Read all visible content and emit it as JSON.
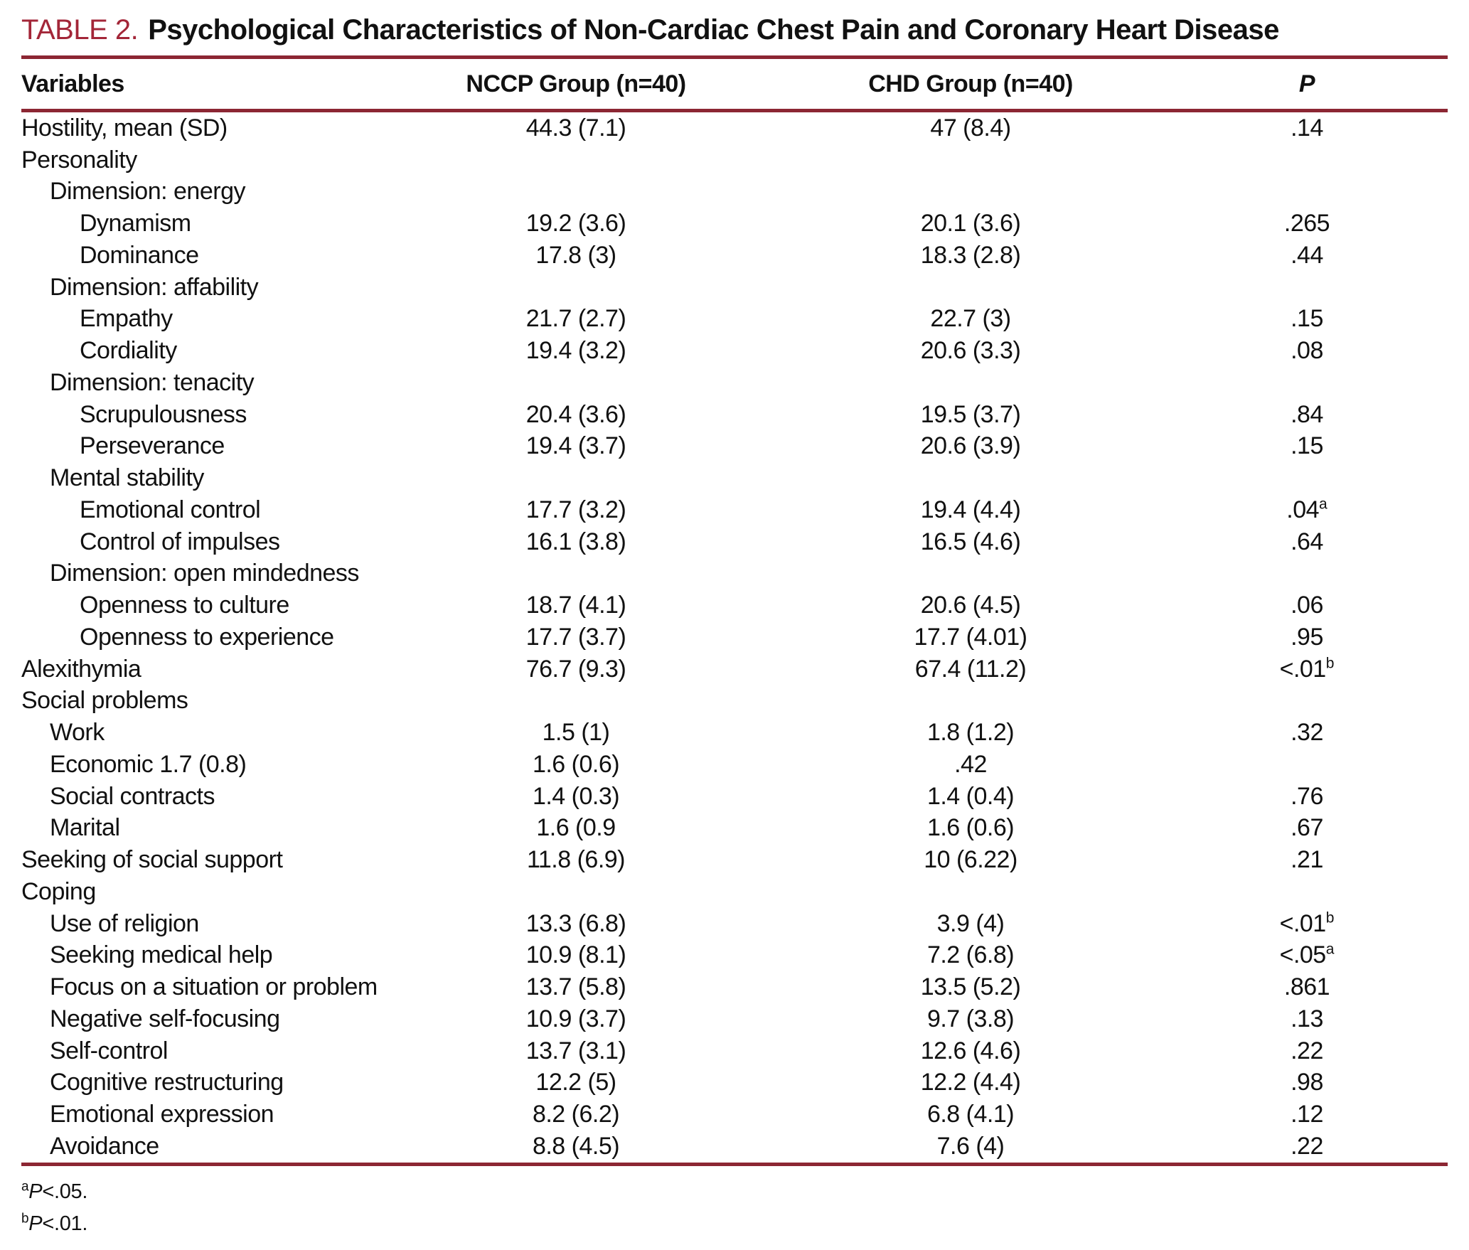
{
  "title": {
    "label": "TABLE 2.",
    "text": "Psychological Characteristics of Non-Cardiac Chest Pain and Coronary Heart Disease"
  },
  "colors": {
    "accent": "#A32638",
    "rule": "#8C2633"
  },
  "table": {
    "columns": [
      "Variables",
      "NCCP Group (n=40)",
      "CHD Group (n=40)",
      "P"
    ],
    "rows": [
      {
        "label": "Hostility, mean (SD)",
        "indent": 0,
        "nccp": "44.3 (7.1)",
        "chd": "47 (8.4)",
        "p": ".14",
        "sup": ""
      },
      {
        "label": "Personality",
        "indent": 0,
        "nccp": "",
        "chd": "",
        "p": "",
        "sup": ""
      },
      {
        "label": "Dimension: energy",
        "indent": 1,
        "nccp": "",
        "chd": "",
        "p": "",
        "sup": ""
      },
      {
        "label": "Dynamism",
        "indent": 2,
        "nccp": "19.2 (3.6)",
        "chd": "20.1 (3.6)",
        "p": ".265",
        "sup": ""
      },
      {
        "label": "Dominance",
        "indent": 2,
        "nccp": "17.8 (3)",
        "chd": "18.3 (2.8)",
        "p": ".44",
        "sup": ""
      },
      {
        "label": "Dimension: affability",
        "indent": 1,
        "nccp": "",
        "chd": "",
        "p": "",
        "sup": ""
      },
      {
        "label": "Empathy",
        "indent": 2,
        "nccp": "21.7 (2.7)",
        "chd": "22.7 (3)",
        "p": ".15",
        "sup": ""
      },
      {
        "label": "Cordiality",
        "indent": 2,
        "nccp": "19.4 (3.2)",
        "chd": "20.6 (3.3)",
        "p": ".08",
        "sup": ""
      },
      {
        "label": "Dimension: tenacity",
        "indent": 1,
        "nccp": "",
        "chd": "",
        "p": "",
        "sup": ""
      },
      {
        "label": "Scrupulousness",
        "indent": 2,
        "nccp": "20.4 (3.6)",
        "chd": "19.5 (3.7)",
        "p": ".84",
        "sup": ""
      },
      {
        "label": "Perseverance",
        "indent": 2,
        "nccp": "19.4 (3.7)",
        "chd": "20.6 (3.9)",
        "p": ".15",
        "sup": ""
      },
      {
        "label": "Mental stability",
        "indent": 1,
        "nccp": "",
        "chd": "",
        "p": "",
        "sup": ""
      },
      {
        "label": "Emotional control",
        "indent": 2,
        "nccp": "17.7 (3.2)",
        "chd": "19.4 (4.4)",
        "p": ".04",
        "sup": "a"
      },
      {
        "label": "Control of impulses",
        "indent": 2,
        "nccp": "16.1 (3.8)",
        "chd": "16.5 (4.6)",
        "p": ".64",
        "sup": ""
      },
      {
        "label": "Dimension: open mindedness",
        "indent": 1,
        "nccp": "",
        "chd": "",
        "p": "",
        "sup": ""
      },
      {
        "label": "Openness to culture",
        "indent": 2,
        "nccp": "18.7 (4.1)",
        "chd": "20.6 (4.5)",
        "p": ".06",
        "sup": ""
      },
      {
        "label": "Openness to experience",
        "indent": 2,
        "nccp": "17.7 (3.7)",
        "chd": "17.7 (4.01)",
        "p": ".95",
        "sup": ""
      },
      {
        "label": "Alexithymia",
        "indent": 0,
        "nccp": "76.7 (9.3)",
        "chd": "67.4 (11.2)",
        "p": "<.01",
        "sup": "b"
      },
      {
        "label": "Social problems",
        "indent": 0,
        "nccp": "",
        "chd": "",
        "p": "",
        "sup": ""
      },
      {
        "label": "Work",
        "indent": 1,
        "nccp": "1.5 (1)",
        "chd": "1.8 (1.2)",
        "p": ".32",
        "sup": ""
      },
      {
        "label": "Economic 1.7 (0.8)",
        "indent": 1,
        "nccp": "1.6 (0.6)",
        "chd": ".42",
        "p": "",
        "sup": ""
      },
      {
        "label": "Social contracts",
        "indent": 1,
        "nccp": "1.4 (0.3)",
        "chd": "1.4 (0.4)",
        "p": ".76",
        "sup": ""
      },
      {
        "label": "Marital",
        "indent": 1,
        "nccp": "1.6 (0.9",
        "chd": "1.6 (0.6)",
        "p": ".67",
        "sup": ""
      },
      {
        "label": "Seeking of social support",
        "indent": 0,
        "nccp": "11.8 (6.9)",
        "chd": "10 (6.22)",
        "p": ".21",
        "sup": ""
      },
      {
        "label": "Coping",
        "indent": 0,
        "nccp": "",
        "chd": "",
        "p": "",
        "sup": ""
      },
      {
        "label": "Use of religion",
        "indent": 1,
        "nccp": "13.3 (6.8)",
        "chd": "3.9 (4)",
        "p": "<.01",
        "sup": "b"
      },
      {
        "label": "Seeking medical help",
        "indent": 1,
        "nccp": "10.9 (8.1)",
        "chd": "7.2 (6.8)",
        "p": "<.05",
        "sup": "a"
      },
      {
        "label": "Focus on a situation or problem",
        "indent": 1,
        "nccp": "13.7 (5.8)",
        "chd": "13.5 (5.2)",
        "p": ".861",
        "sup": ""
      },
      {
        "label": "Negative self-focusing",
        "indent": 1,
        "nccp": "10.9 (3.7)",
        "chd": "9.7 (3.8)",
        "p": ".13",
        "sup": ""
      },
      {
        "label": "Self-control",
        "indent": 1,
        "nccp": "13.7 (3.1)",
        "chd": "12.6 (4.6)",
        "p": ".22",
        "sup": ""
      },
      {
        "label": "Cognitive restructuring",
        "indent": 1,
        "nccp": "12.2 (5)",
        "chd": "12.2 (4.4)",
        "p": ".98",
        "sup": ""
      },
      {
        "label": "Emotional expression",
        "indent": 1,
        "nccp": "8.2 (6.2)",
        "chd": "6.8 (4.1)",
        "p": ".12",
        "sup": ""
      },
      {
        "label": "Avoidance",
        "indent": 1,
        "nccp": "8.8 (4.5)",
        "chd": "7.6 (4)",
        "p": ".22",
        "sup": ""
      }
    ],
    "footnotes": [
      {
        "sup": "a",
        "p": "P",
        "rest": "<.05."
      },
      {
        "sup": "b",
        "p": "P",
        "rest": "<.01."
      }
    ]
  }
}
